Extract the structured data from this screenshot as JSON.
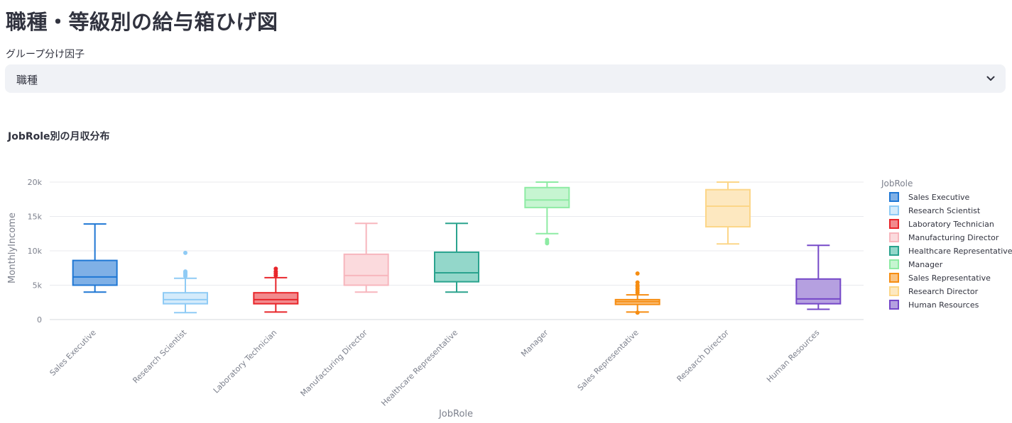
{
  "page": {
    "title": "職種・等級別の給与箱ひげ図"
  },
  "selector": {
    "label": "グループ分け因子",
    "value": "職種",
    "icon": "chevron-down-icon"
  },
  "chart_data": {
    "type": "box",
    "title": "JobRole別の月収分布",
    "xlabel": "JobRole",
    "ylabel": "MonthlyIncome",
    "ylim": [
      0,
      21000
    ],
    "yticks": [
      0,
      5000,
      10000,
      15000,
      20000
    ],
    "ytick_labels": [
      "0",
      "5k",
      "10k",
      "15k",
      "20k"
    ],
    "legend": {
      "title": "JobRole",
      "placement": "right"
    },
    "categories": [
      "Sales Executive",
      "Research Scientist",
      "Laboratory Technician",
      "Manufacturing Director",
      "Healthcare Representative",
      "Manager",
      "Sales Representative",
      "Research Director",
      "Human Resources"
    ],
    "series": [
      {
        "name": "Sales Executive",
        "color": "#1f77d4",
        "fill": "#7fb0e6",
        "min": 4000,
        "q1": 5000,
        "median": 6200,
        "q3": 8600,
        "max": 13900,
        "outliers": []
      },
      {
        "name": "Research Scientist",
        "color": "#8fcbf5",
        "fill": "#d4ebfb",
        "min": 1000,
        "q1": 2300,
        "median": 2900,
        "q3": 3900,
        "max": 6000,
        "outliers": [
          6300,
          6500,
          6700,
          6900,
          7000,
          9700
        ]
      },
      {
        "name": "Laboratory Technician",
        "color": "#e8262b",
        "fill": "#f28a8d",
        "min": 1100,
        "q1": 2300,
        "median": 2900,
        "q3": 3900,
        "max": 6100,
        "outliers": [
          6400,
          6700,
          7000,
          7400
        ]
      },
      {
        "name": "Manufacturing Director",
        "color": "#f7b6bd",
        "fill": "#fbdadd",
        "min": 4000,
        "q1": 5000,
        "median": 6400,
        "q3": 9500,
        "max": 14000,
        "outliers": []
      },
      {
        "name": "Healthcare Representative",
        "color": "#2aa38e",
        "fill": "#93d7ca",
        "min": 4000,
        "q1": 5500,
        "median": 6800,
        "q3": 9800,
        "max": 14000,
        "outliers": []
      },
      {
        "name": "Manager",
        "color": "#8deba3",
        "fill": "#c6f5d1",
        "min": 12500,
        "q1": 16300,
        "median": 17400,
        "q3": 19200,
        "max": 20000,
        "outliers": [
          11100,
          11300,
          11600
        ]
      },
      {
        "name": "Sales Representative",
        "color": "#f68d12",
        "fill": "#fac381",
        "min": 1100,
        "q1": 2200,
        "median": 2600,
        "q3": 2900,
        "max": 3600,
        "outliers": [
          1000,
          3900,
          4200,
          4500,
          4800,
          5000,
          5400,
          6700
        ]
      },
      {
        "name": "Research Director",
        "color": "#fcd688",
        "fill": "#fde8c0",
        "min": 11000,
        "q1": 13500,
        "median": 16500,
        "q3": 18900,
        "max": 20000,
        "outliers": []
      },
      {
        "name": "Human Resources",
        "color": "#7548c8",
        "fill": "#b5a0e0",
        "min": 1500,
        "q1": 2300,
        "median": 3000,
        "q3": 5900,
        "max": 10800,
        "outliers": []
      }
    ]
  }
}
